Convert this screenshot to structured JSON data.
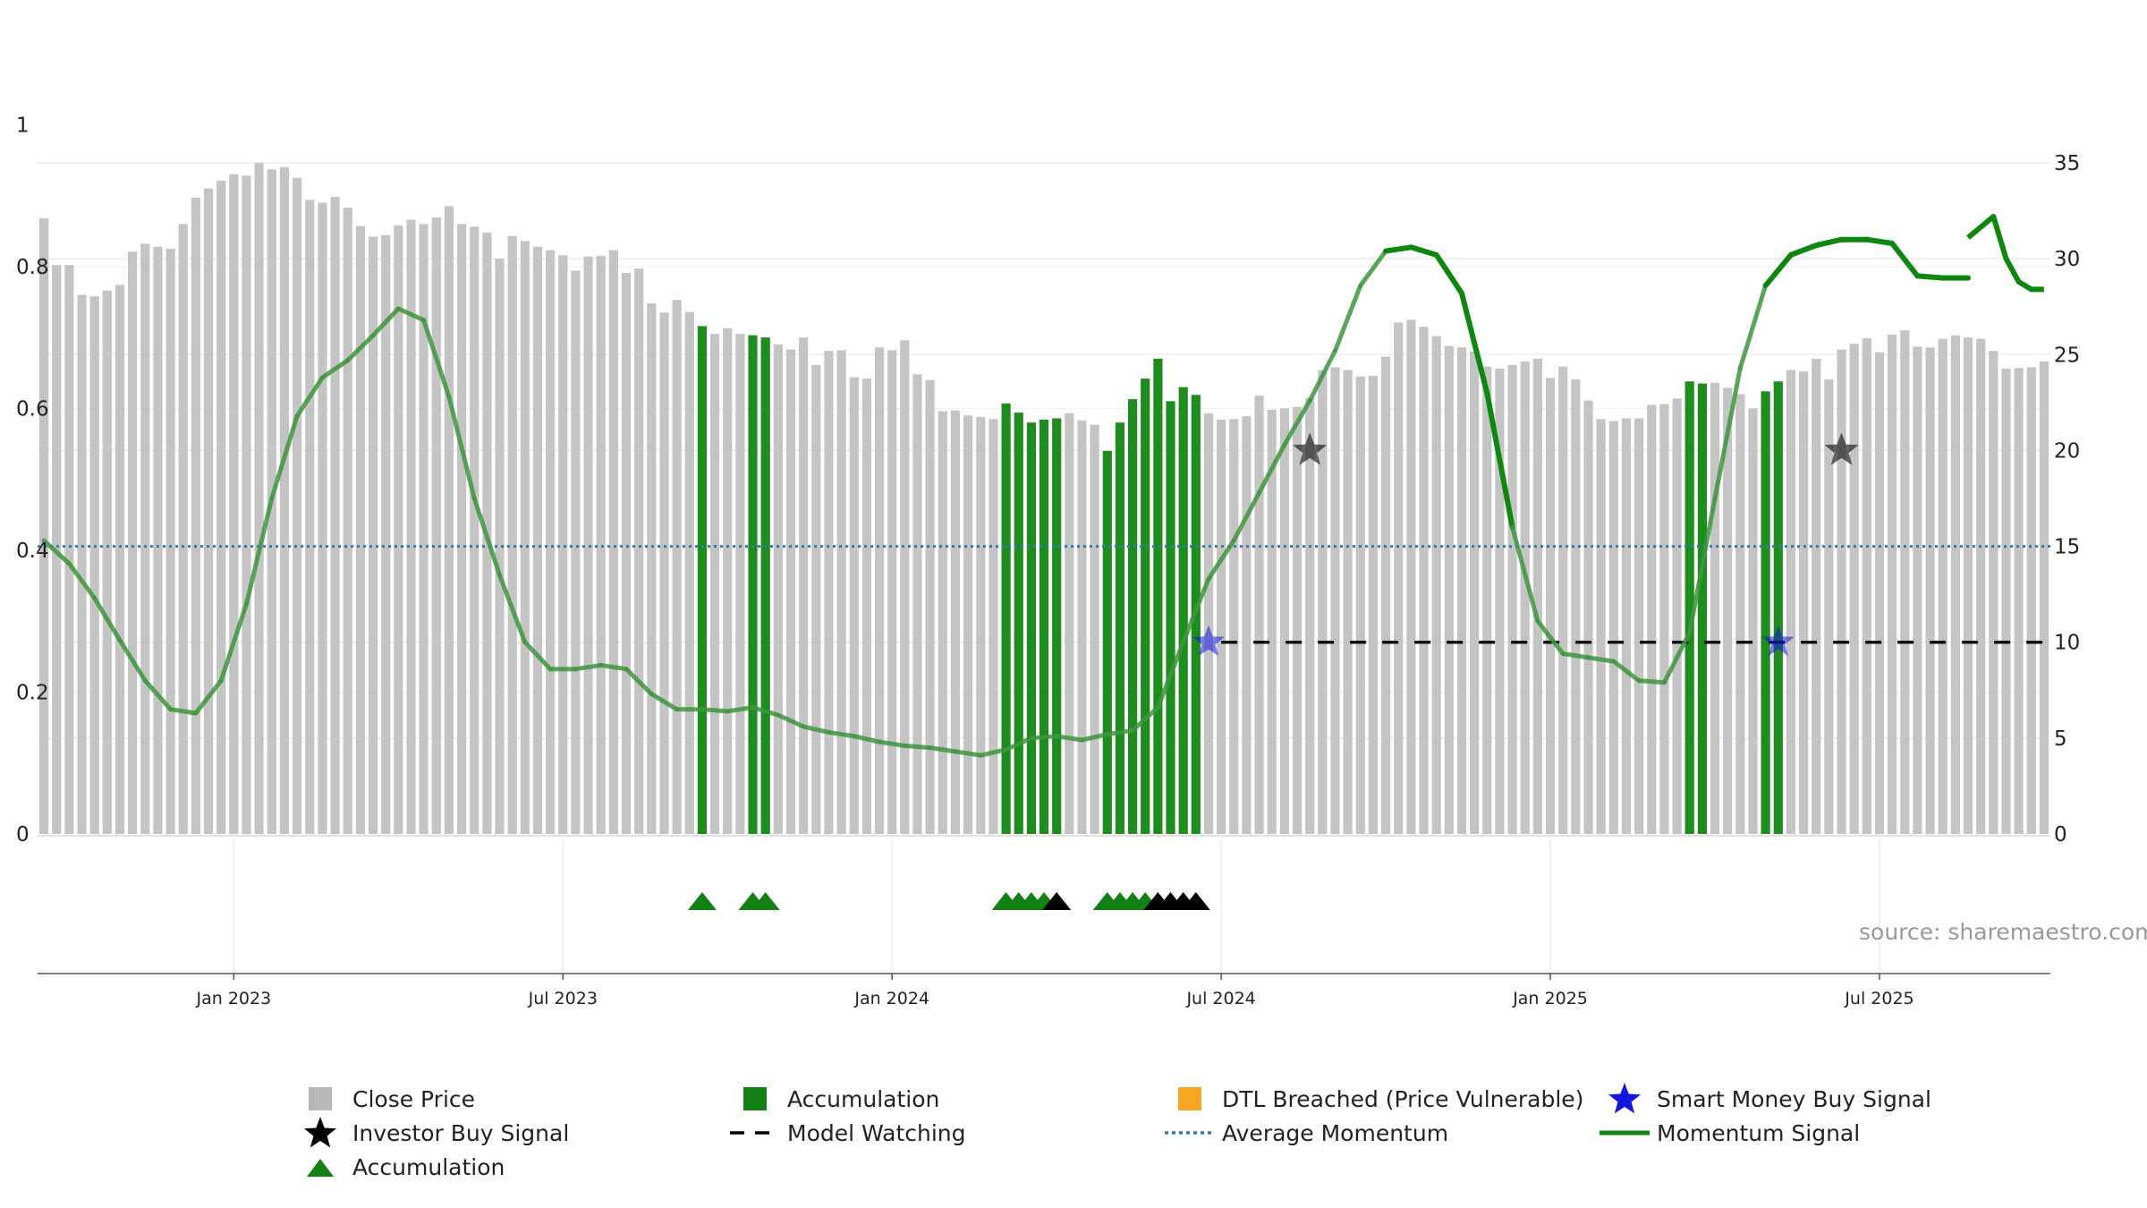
{
  "chart_data": {
    "type": "bar",
    "title": "",
    "xlabel": "",
    "ylabel": "",
    "source": "source: sharemaestro.com",
    "y_left": {
      "range": [
        0,
        1.1
      ],
      "ticks": [
        "0",
        "0.2",
        "0.4",
        "0.6",
        "0.8",
        "1"
      ],
      "tick_values": [
        0,
        0.2,
        0.4,
        0.6,
        0.8,
        1.0
      ]
    },
    "y_right": {
      "range": [
        0,
        35
      ],
      "ticks": [
        "0",
        "5",
        "10",
        "15",
        "20",
        "25",
        "30",
        "35"
      ],
      "tick_values": [
        0,
        5,
        10,
        15,
        20,
        25,
        30,
        35
      ]
    },
    "x_ticks": {
      "labels": [
        "Jan 2023",
        "Jul 2023",
        "Jan 2024",
        "Jul 2024",
        "Jan 2025",
        "Jul 2025"
      ],
      "week_index": [
        15,
        41,
        67,
        93,
        119,
        145
      ]
    },
    "close_price": [
      0.868,
      0.802,
      0.802,
      0.76,
      0.758,
      0.766,
      0.774,
      0.821,
      0.832,
      0.828,
      0.825,
      0.86,
      0.897,
      0.91,
      0.921,
      0.93,
      0.928,
      0.946,
      0.937,
      0.94,
      0.925,
      0.894,
      0.89,
      0.898,
      0.883,
      0.857,
      0.842,
      0.844,
      0.858,
      0.866,
      0.86,
      0.869,
      0.885,
      0.86,
      0.856,
      0.848,
      0.811,
      0.843,
      0.836,
      0.828,
      0.823,
      0.816,
      0.794,
      0.814,
      0.815,
      0.823,
      0.791,
      0.797,
      0.748,
      0.735,
      0.753,
      0.736,
      0.716,
      0.705,
      0.713,
      0.705,
      0.703,
      0.7,
      0.69,
      0.683,
      0.7,
      0.661,
      0.681,
      0.682,
      0.644,
      0.642,
      0.686,
      0.682,
      0.696,
      0.648,
      0.64,
      0.596,
      0.597,
      0.59,
      0.588,
      0.585,
      0.607,
      0.594,
      0.58,
      0.584,
      0.586,
      0.593,
      0.583,
      0.577,
      0.54,
      0.58,
      0.613,
      0.642,
      0.67,
      0.61,
      0.63,
      0.619,
      0.593,
      0.584,
      0.585,
      0.589,
      0.618,
      0.598,
      0.6,
      0.602,
      0.615,
      0.654,
      0.658,
      0.654,
      0.645,
      0.646,
      0.673,
      0.721,
      0.725,
      0.715,
      0.702,
      0.688,
      0.686,
      0.68,
      0.659,
      0.656,
      0.661,
      0.666,
      0.67,
      0.643,
      0.659,
      0.641,
      0.611,
      0.585,
      0.582,
      0.586,
      0.586,
      0.605,
      0.606,
      0.614,
      0.638,
      0.635,
      0.636,
      0.629,
      0.62,
      0.6,
      0.624,
      0.638,
      0.654,
      0.652,
      0.67,
      0.641,
      0.683,
      0.691,
      0.699,
      0.679,
      0.704,
      0.71,
      0.687,
      0.686,
      0.698,
      0.703,
      0.7,
      0.698,
      0.681,
      0.656,
      0.657,
      0.658,
      0.666
    ],
    "accumulation_weeks": [
      52,
      56,
      57,
      76,
      77,
      78,
      79,
      80,
      84,
      85,
      86,
      87,
      88,
      89,
      90,
      91,
      130,
      131,
      136,
      137
    ],
    "accumulation_triangles": [
      52,
      56,
      57,
      76,
      77,
      78,
      79,
      84,
      85,
      86,
      87
    ],
    "investor_triangles": [
      80,
      88,
      89,
      90,
      91
    ],
    "momentum_x": [
      0,
      2,
      4,
      6,
      8,
      10,
      12,
      14,
      16,
      18,
      20,
      22,
      24,
      26,
      28,
      30,
      32,
      34,
      36,
      38,
      40,
      42,
      44,
      46,
      48,
      50,
      52,
      54,
      56,
      58,
      60,
      62,
      64,
      66,
      68,
      70,
      72,
      74,
      76,
      78,
      80,
      82,
      84,
      86,
      88,
      90,
      92,
      94,
      96,
      98,
      100,
      102,
      104,
      106,
      108,
      110,
      112,
      114,
      116,
      118,
      120,
      122,
      124,
      126,
      128,
      130,
      132,
      134,
      136,
      138,
      140,
      142,
      144,
      146,
      148,
      150,
      152,
      154,
      155,
      156,
      157,
      158
    ],
    "momentum_y": [
      15.3,
      14.1,
      12.3,
      10.1,
      8.0,
      6.5,
      6.3,
      8.0,
      12.0,
      17.5,
      21.8,
      23.8,
      24.7,
      26.0,
      27.4,
      26.8,
      22.8,
      17.5,
      13.5,
      10.0,
      8.6,
      8.6,
      8.8,
      8.6,
      7.3,
      6.5,
      6.5,
      6.4,
      6.6,
      6.2,
      5.6,
      5.3,
      5.1,
      4.8,
      4.6,
      4.5,
      4.3,
      4.1,
      4.4,
      5.0,
      5.1,
      4.9,
      5.2,
      5.4,
      6.6,
      10.0,
      13.3,
      15.3,
      17.8,
      20.3,
      22.6,
      25.2,
      28.6,
      30.4,
      30.6,
      30.2,
      28.2,
      23.0,
      16.0,
      11.1,
      9.4,
      9.2,
      9.0,
      8.0,
      7.9,
      10.5,
      17.5,
      24.3,
      28.6,
      30.2,
      30.7,
      31.0,
      31.0,
      30.8,
      29.1,
      29.0,
      29.0,
      29.0,
      29.0,
      29.0,
      29.0,
      29.0
    ],
    "momentum_color": [
      "#4a994a",
      "#4a994a",
      "#4a994a",
      "#4a994a",
      "#4a994a",
      "#4a994a",
      "#4a994a",
      "#4a994a",
      "#4a994a",
      "#4a994a",
      "#4a994a",
      "#4a994a",
      "#4a994a",
      "#4a994a",
      "#4a994a",
      "#4a994a",
      "#4a994a",
      "#4a994a",
      "#4a994a",
      "#4a994a",
      "#4a994a",
      "#4a994a",
      "#4a994a",
      "#4a994a",
      "#4a994a",
      "#4a994a",
      "#4a994a",
      "#4a994a",
      "#4a994a",
      "#4a994a",
      "#4a994a",
      "#4a994a",
      "#4a994a",
      "#4a994a",
      "#4a994a",
      "#4a994a",
      "#4a994a",
      "#4a994a",
      "#4a994a",
      "#4a994a",
      "#4a994a",
      "#4a994a",
      "#4a994a",
      "#4a994a",
      "#4a994a",
      "#4a994a",
      "#4a994a",
      "#4a994a",
      "#4a994a",
      "#4a994a",
      "#4a994a",
      "#4a994a",
      "#4a994a",
      "#1d8a1d",
      "#1d8a1d",
      "#1d8a1d",
      "#1d8a1d",
      "#1d8a1d",
      "#4a994a",
      "#4a994a",
      "#4a994a",
      "#4a994a",
      "#4a994a",
      "#4a994a",
      "#4a994a",
      "#4a994a",
      "#4a994a",
      "#4a994a",
      "#1d8a1d",
      "#1d8a1d",
      "#1d8a1d",
      "#1d8a1d",
      "#1d8a1d",
      "#1d8a1d",
      "#1d8a1d",
      "#1d8a1d",
      "#1d8a1d",
      "#1d8a1d",
      "#1d8a1d",
      "#1d8a1d",
      "#1d8a1d",
      "#1d8a1d"
    ],
    "momentum_tail": {
      "x": [
        152,
        154,
        155,
        156,
        157,
        158
      ],
      "y": [
        31.1,
        32.2,
        30.0,
        28.8,
        28.4,
        28.4
      ]
    },
    "average_momentum": 15.0,
    "model_watching": {
      "from_week": 93,
      "to_week": 158,
      "value": 10.0
    },
    "smart_money_signals": [
      {
        "week": 92,
        "value": 10.0
      },
      {
        "week": 137,
        "value": 10.0
      }
    ],
    "investor_buy_signals": [
      {
        "week": 100,
        "value": 20.0
      },
      {
        "week": 142,
        "value": 20.0
      }
    ],
    "colors": {
      "close_price": "#c4c4c4",
      "accumulation": "#1f8c1f",
      "accumulation_marker": "#128012",
      "dtl_breached": "#f5a623",
      "smart_money": "#1515dd",
      "investor": "#000000",
      "average_momentum": "#3a78a8",
      "momentum": "#128012"
    },
    "legend": [
      {
        "label": "Close Price",
        "symbol": "square",
        "color": "#b8b8b8"
      },
      {
        "label": "Accumulation",
        "symbol": "square",
        "color": "#128012"
      },
      {
        "label": "DTL Breached (Price Vulnerable)",
        "symbol": "square",
        "color": "#f5a623"
      },
      {
        "label": "Smart Money Buy Signal",
        "symbol": "star",
        "color": "#1515dd"
      },
      {
        "label": "Investor Buy Signal",
        "symbol": "star",
        "color": "#000000"
      },
      {
        "label": "Model Watching",
        "symbol": "dash",
        "color": "#000000"
      },
      {
        "label": "Average Momentum",
        "symbol": "dot",
        "color": "#3a78a8"
      },
      {
        "label": "Momentum Signal",
        "symbol": "line",
        "color": "#128012"
      },
      {
        "label": "Accumulation",
        "symbol": "triangle",
        "color": "#128012"
      }
    ]
  }
}
